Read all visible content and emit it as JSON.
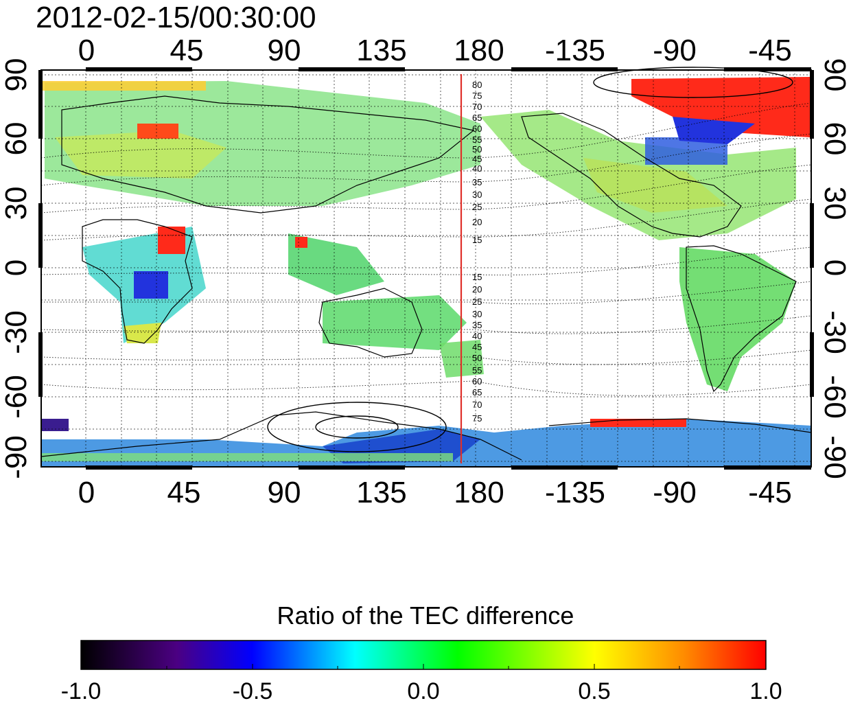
{
  "timestamp": "2012-02-15/00:30:00",
  "map": {
    "top_lon_labels": [
      "0",
      "45",
      "90",
      "135",
      "180",
      "-135",
      "-90",
      "-45"
    ],
    "bottom_lon_labels": [
      "0",
      "45",
      "90",
      "135",
      "180",
      "-135",
      "-90",
      "-45"
    ],
    "left_lat_labels": [
      "90",
      "60",
      "30",
      "0",
      "-30",
      "-60",
      "-90"
    ],
    "right_lat_labels": [
      "90",
      "60",
      "30",
      "0",
      "-30",
      "-60",
      "-90"
    ],
    "contour_labels_north": [
      "80",
      "75",
      "70",
      "65",
      "60",
      "55",
      "50",
      "45",
      "40",
      "35",
      "30",
      "25",
      "20",
      "15"
    ],
    "contour_labels_south": [
      "15",
      "20",
      "25",
      "30",
      "35",
      "40",
      "45",
      "50",
      "55",
      "60",
      "65",
      "70",
      "75"
    ],
    "marker_longitude": 172,
    "marker_color": "#e0302a"
  },
  "colorbar": {
    "title": "Ratio of the TEC difference",
    "tick_labels": [
      "-1.0",
      "-0.5",
      "0.0",
      "0.5",
      "1.0"
    ],
    "range": [
      -1.0,
      1.0
    ],
    "colors": [
      "#000000",
      "#4b0082",
      "#0000ff",
      "#00ffff",
      "#00ff00",
      "#ffff00",
      "#ff8c00",
      "#ff0000"
    ]
  }
}
